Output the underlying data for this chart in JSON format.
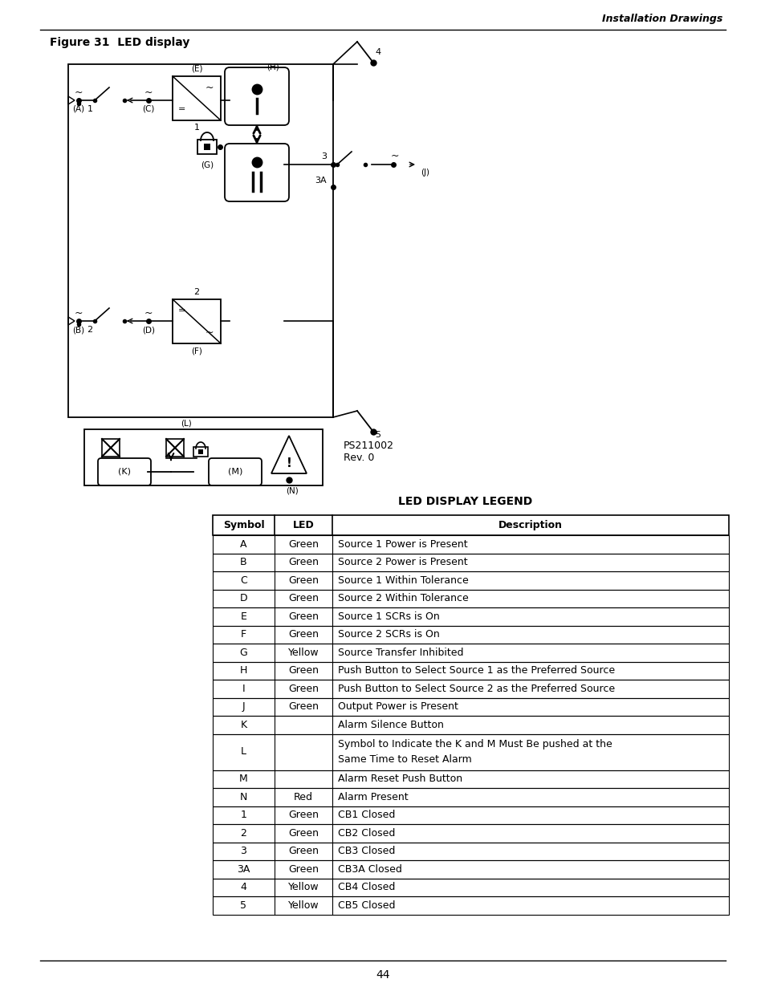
{
  "page_title_italic": "Installation Drawings",
  "figure_title": "Figure 31  LED display",
  "ps_number": "PS211002\nRev. 0",
  "legend_title": "LED DISPLAY LEGEND",
  "table_headers": [
    "Symbol",
    "LED",
    "Description"
  ],
  "table_rows": [
    [
      "A",
      "Green",
      "Source 1 Power is Present"
    ],
    [
      "B",
      "Green",
      "Source 2 Power is Present"
    ],
    [
      "C",
      "Green",
      "Source 1 Within Tolerance"
    ],
    [
      "D",
      "Green",
      "Source 2 Within Tolerance"
    ],
    [
      "E",
      "Green",
      "Source 1 SCRs is On"
    ],
    [
      "F",
      "Green",
      "Source 2 SCRs is On"
    ],
    [
      "G",
      "Yellow",
      "Source Transfer Inhibited"
    ],
    [
      "H",
      "Green",
      "Push Button to Select Source 1 as the Preferred Source"
    ],
    [
      "I",
      "Green",
      "Push Button to Select Source 2 as the Preferred Source"
    ],
    [
      "J",
      "Green",
      "Output Power is Present"
    ],
    [
      "K",
      "",
      "Alarm Silence Button"
    ],
    [
      "L",
      "",
      "Symbol to Indicate the K and M Must Be pushed at the\nSame Time to Reset Alarm"
    ],
    [
      "M",
      "",
      "Alarm Reset Push Button"
    ],
    [
      "N",
      "Red",
      "Alarm Present"
    ],
    [
      "1",
      "Green",
      "CB1 Closed"
    ],
    [
      "2",
      "Green",
      "CB2 Closed"
    ],
    [
      "3",
      "Green",
      "CB3 Closed"
    ],
    [
      "3A",
      "Green",
      "CB3A Closed"
    ],
    [
      "4",
      "Yellow",
      "CB4 Closed"
    ],
    [
      "5",
      "Yellow",
      "CB5 Closed"
    ]
  ],
  "page_number": "44",
  "bg_color": "#ffffff"
}
